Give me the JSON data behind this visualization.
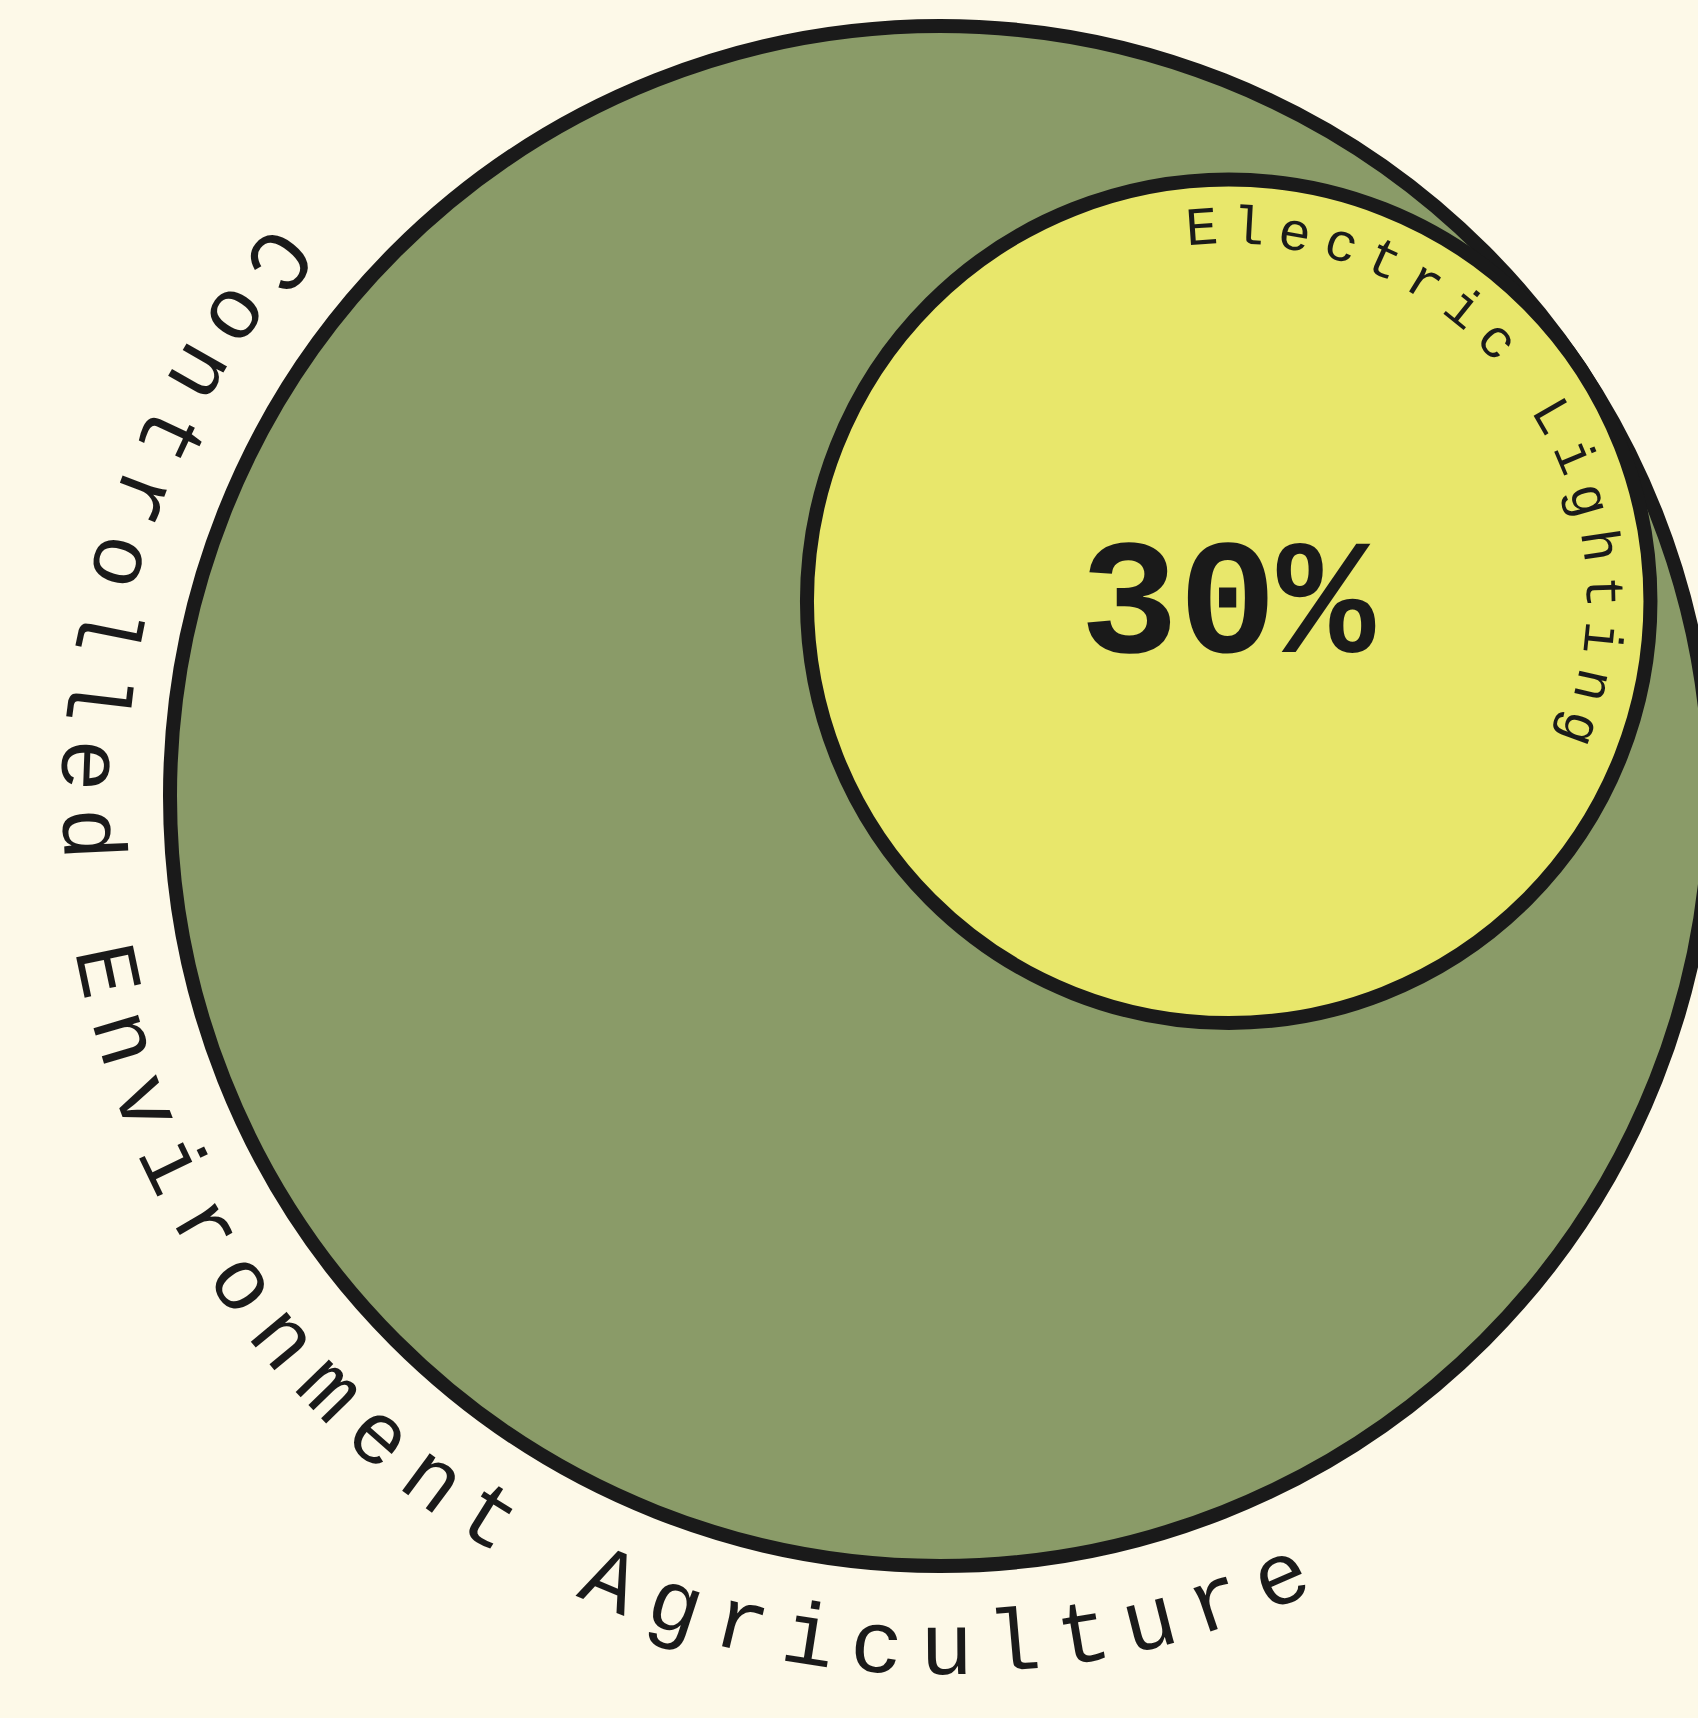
{
  "chart_data": {
    "type": "other",
    "categories": [
      "Controlled Environment Agriculture",
      "Electric Lighting"
    ],
    "values": [
      null,
      30
    ],
    "value_labels": [
      null,
      "30%"
    ],
    "colors": [
      "#8a9b68",
      "#e8e76b"
    ]
  }
}
